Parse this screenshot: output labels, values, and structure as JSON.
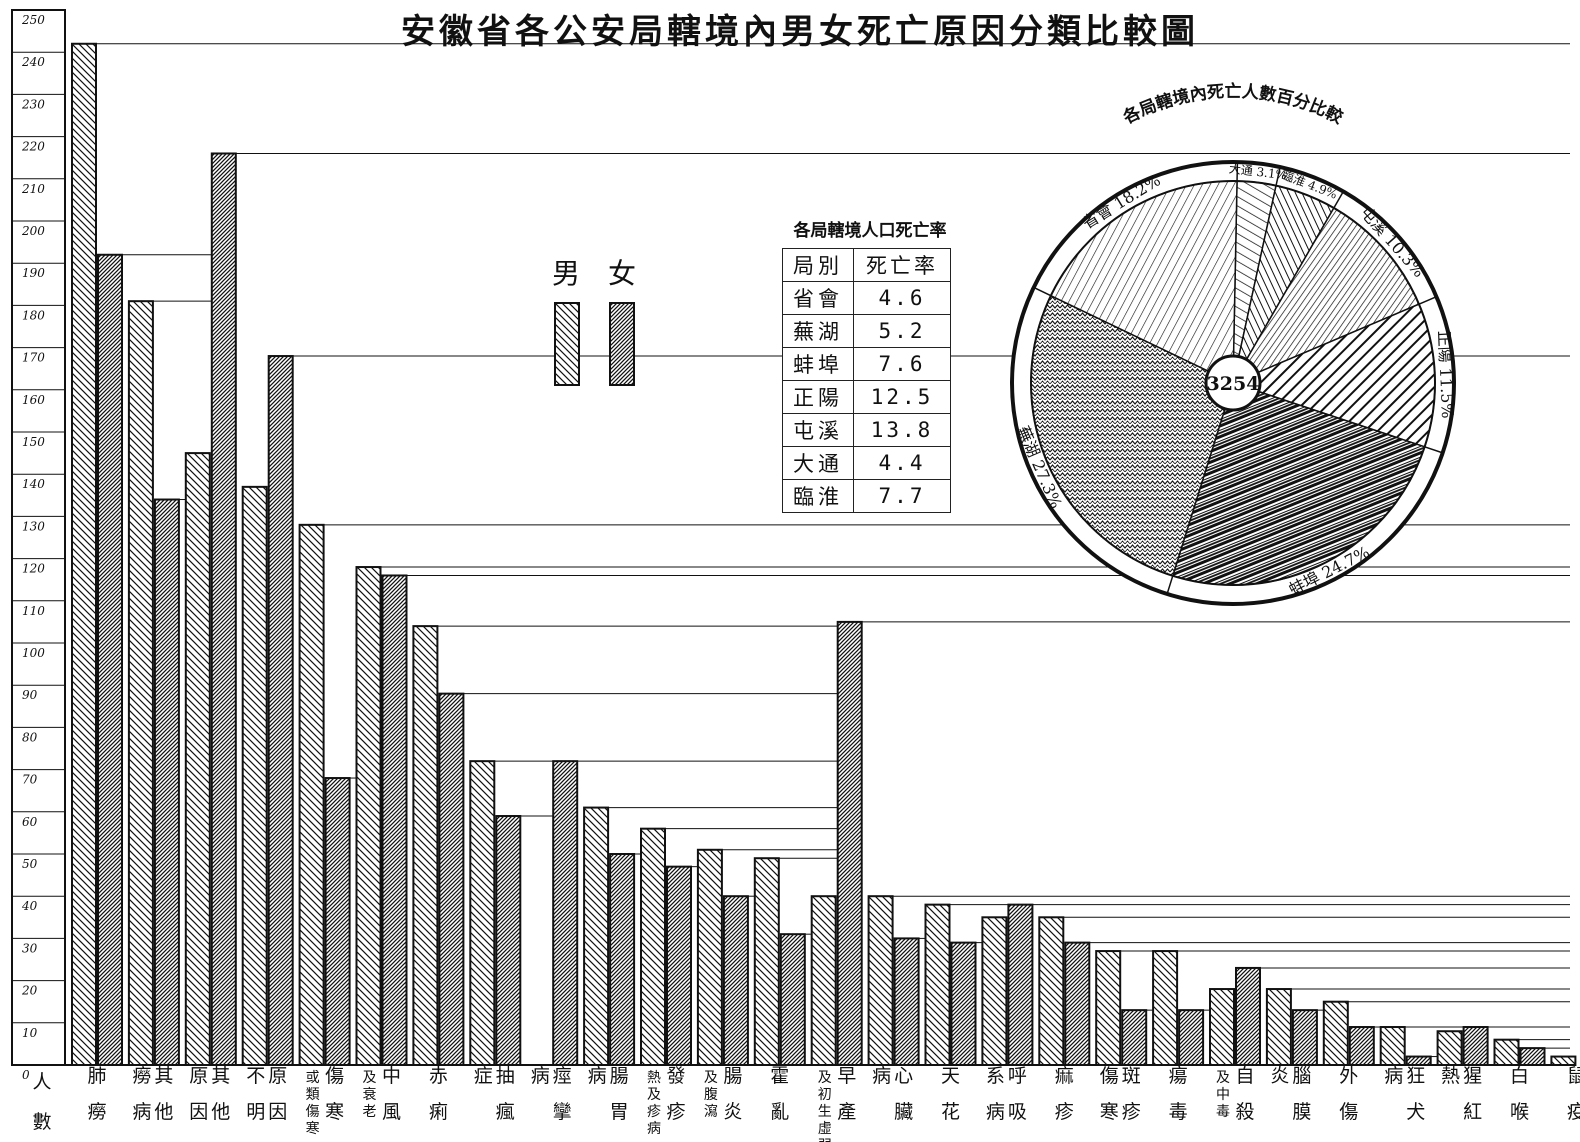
{
  "title": "安徽省各公安局轄境內男女死亡原因分類比較圖",
  "legend": {
    "male": "男",
    "female": "女"
  },
  "colors": {
    "line": "#111111",
    "paper": "#ffffff"
  },
  "chart_data": [
    {
      "type": "bar",
      "ylabel": "人數",
      "ylim": [
        0,
        250
      ],
      "yticks": [
        0,
        10,
        20,
        30,
        40,
        50,
        60,
        70,
        80,
        90,
        100,
        110,
        120,
        130,
        140,
        150,
        160,
        170,
        180,
        190,
        200,
        210,
        220,
        230,
        240,
        250
      ],
      "categories": [
        "肺癆",
        "其他癆病",
        "其他原因",
        "原因不明",
        "傷寒或類傷寒",
        "中風及衰老",
        "赤痢",
        "抽瘋症",
        "痙攣病",
        "腸胃病",
        "發疹熱及疹病",
        "腸炎及腹瀉",
        "霍亂",
        "早產及初生虛弱",
        "心臟病",
        "天花",
        "呼吸系病",
        "痲疹",
        "斑疹傷寒",
        "瘍毒",
        "自殺及中毒",
        "腦膜炎",
        "外傷",
        "狂犬病",
        "猩紅熱",
        "白喉",
        "鼠疫"
      ],
      "series": [
        {
          "name": "男",
          "values": [
            242,
            181,
            145,
            137,
            128,
            118,
            104,
            72,
            0,
            61,
            56,
            51,
            49,
            40,
            40,
            38,
            35,
            35,
            27,
            27,
            18,
            18,
            15,
            9,
            8,
            6,
            2
          ]
        },
        {
          "name": "女",
          "values": [
            192,
            134,
            216,
            168,
            68,
            116,
            88,
            59,
            72,
            50,
            47,
            40,
            31,
            105,
            30,
            29,
            38,
            29,
            13,
            13,
            23,
            13,
            9,
            2,
            9,
            4,
            0
          ]
        }
      ]
    },
    {
      "type": "pie",
      "title": "各局轄境內死亡人數百分比較",
      "center_label": "3254",
      "slices": [
        {
          "label": "大通 3.1%",
          "value": 3.1
        },
        {
          "label": "臨淮 4.9%",
          "value": 4.9
        },
        {
          "label": "屯溪 10.3%",
          "value": 10.3
        },
        {
          "label": "正陽 11.5%",
          "value": 11.5
        },
        {
          "label": "蚌埠 24.7%",
          "value": 24.7
        },
        {
          "label": "蕪湖 27.3%",
          "value": 27.3
        },
        {
          "label": "省會 18.2%",
          "value": 18.2
        }
      ]
    },
    {
      "type": "table",
      "title": "各局轄境人口死亡率",
      "headers": [
        "局別",
        "死亡率"
      ],
      "rows": [
        [
          "省會",
          "4.6"
        ],
        [
          "蕪湖",
          "5.2"
        ],
        [
          "蚌埠",
          "7.6"
        ],
        [
          "正陽",
          "12.5"
        ],
        [
          "屯溪",
          "13.8"
        ],
        [
          "大通",
          "4.4"
        ],
        [
          "臨淮",
          "7.7"
        ]
      ]
    }
  ]
}
